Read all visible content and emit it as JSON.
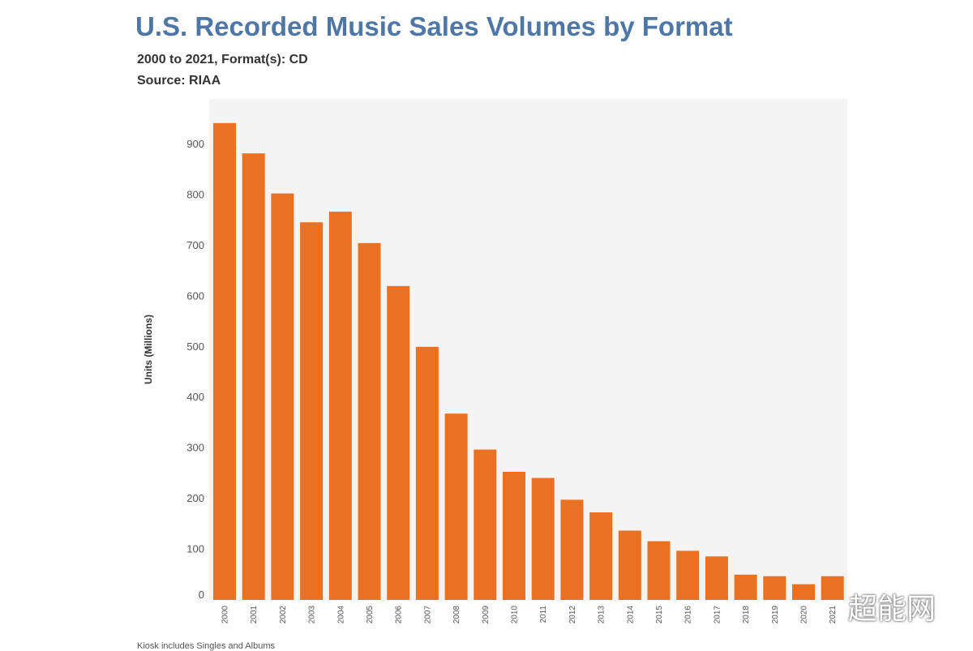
{
  "header": {
    "title": "U.S. Recorded Music Sales Volumes by Format",
    "subtitle": "2000 to 2021, Format(s): CD",
    "source": "Source: RIAA"
  },
  "footnote": "Kiosk includes Singles and Albums",
  "watermark": "超能网",
  "chart_data": {
    "type": "bar",
    "title": "U.S. Recorded Music Sales Volumes by Format",
    "ylabel": "Units (Millions)",
    "xlabel": "",
    "ylim": [
      0,
      960
    ],
    "yticks": [
      0,
      100,
      200,
      300,
      400,
      500,
      600,
      700,
      800,
      900
    ],
    "categories": [
      "2000",
      "2001",
      "2002",
      "2003",
      "2004",
      "2005",
      "2006",
      "2007",
      "2008",
      "2009",
      "2010",
      "2011",
      "2012",
      "2013",
      "2014",
      "2015",
      "2016",
      "2017",
      "2018",
      "2019",
      "2020",
      "2021"
    ],
    "values": [
      942,
      882,
      803,
      746,
      767,
      705,
      620,
      500,
      368,
      297,
      253,
      241,
      198,
      173,
      137,
      116,
      97,
      86,
      50,
      47,
      31,
      47
    ],
    "color": "#ea7121",
    "plot_background": "#f4f4f4",
    "grid": false
  }
}
